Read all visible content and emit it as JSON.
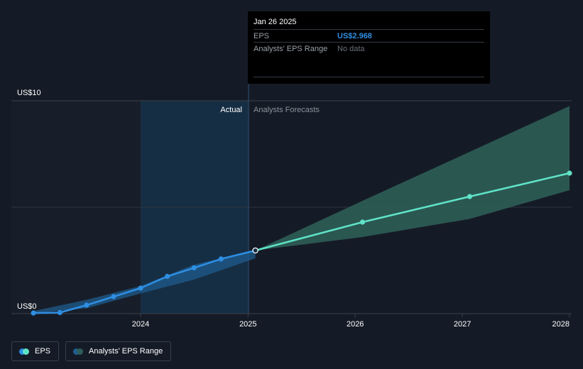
{
  "tooltip": {
    "date": "Jan 26 2025",
    "rows": [
      {
        "label": "EPS",
        "value": "US$2.968"
      },
      {
        "label": "Analysts' EPS Range",
        "value": "No data"
      }
    ]
  },
  "labels": {
    "actual": "Actual",
    "forecast": "Analysts Forecasts"
  },
  "legend": {
    "eps": "EPS",
    "range": "Analysts' EPS Range"
  },
  "colors": {
    "background": "#151b26",
    "eps_actual": "#2e8ee3",
    "eps_forecast": "#5fe3c8",
    "range_past": "#1f5f93",
    "range_forecast": "#2d5e57",
    "highlight": "#16314a"
  },
  "chart_data": {
    "type": "line",
    "title": "",
    "xlabel": "",
    "ylabel": "",
    "y_tick_labels": [
      "US$0",
      "US$10"
    ],
    "x_tick_labels": [
      "2024",
      "2025",
      "2026",
      "2027",
      "2028"
    ],
    "xlim": [
      "2023-01-01",
      "2028-01-01"
    ],
    "ylim": [
      0,
      10
    ],
    "grid": true,
    "legend_position": "bottom-left",
    "series": [
      {
        "name": "EPS",
        "segment": "actual",
        "points": [
          {
            "x": "2023-01-01",
            "y": 0.03
          },
          {
            "x": "2023-04-01",
            "y": 0.05
          },
          {
            "x": "2023-07-01",
            "y": 0.4
          },
          {
            "x": "2023-10-01",
            "y": 0.8
          },
          {
            "x": "2024-01-01",
            "y": 1.2
          },
          {
            "x": "2024-04-01",
            "y": 1.75
          },
          {
            "x": "2024-07-01",
            "y": 2.15
          },
          {
            "x": "2024-10-01",
            "y": 2.57
          },
          {
            "x": "2025-01-26",
            "y": 2.968
          }
        ]
      },
      {
        "name": "EPS",
        "segment": "forecast",
        "points": [
          {
            "x": "2025-01-26",
            "y": 2.968
          },
          {
            "x": "2026-01-26",
            "y": 4.3
          },
          {
            "x": "2027-01-26",
            "y": 5.5
          },
          {
            "x": "2028-01-01",
            "y": 6.6
          }
        ]
      },
      {
        "name": "Analysts' EPS Range",
        "segment": "past",
        "upper": [
          {
            "x": "2023-01-01",
            "y": 0.12
          },
          {
            "x": "2023-07-01",
            "y": 0.65
          },
          {
            "x": "2024-01-01",
            "y": 1.3
          },
          {
            "x": "2024-07-01",
            "y": 2.3
          },
          {
            "x": "2025-01-26",
            "y": 2.97
          }
        ],
        "lower": [
          {
            "x": "2023-01-01",
            "y": 0.03
          },
          {
            "x": "2023-07-01",
            "y": 0.25
          },
          {
            "x": "2024-01-01",
            "y": 0.95
          },
          {
            "x": "2024-07-01",
            "y": 1.6
          },
          {
            "x": "2025-01-26",
            "y": 2.6
          }
        ]
      },
      {
        "name": "Analysts' EPS Range",
        "segment": "forecast",
        "upper": [
          {
            "x": "2025-01-26",
            "y": 2.968
          },
          {
            "x": "2026-01-26",
            "y": 5.3
          },
          {
            "x": "2027-01-26",
            "y": 7.6
          },
          {
            "x": "2028-01-01",
            "y": 9.75
          }
        ],
        "lower": [
          {
            "x": "2025-01-26",
            "y": 2.968
          },
          {
            "x": "2026-01-26",
            "y": 3.6
          },
          {
            "x": "2027-01-26",
            "y": 4.45
          },
          {
            "x": "2028-01-01",
            "y": 5.8
          }
        ]
      }
    ]
  }
}
